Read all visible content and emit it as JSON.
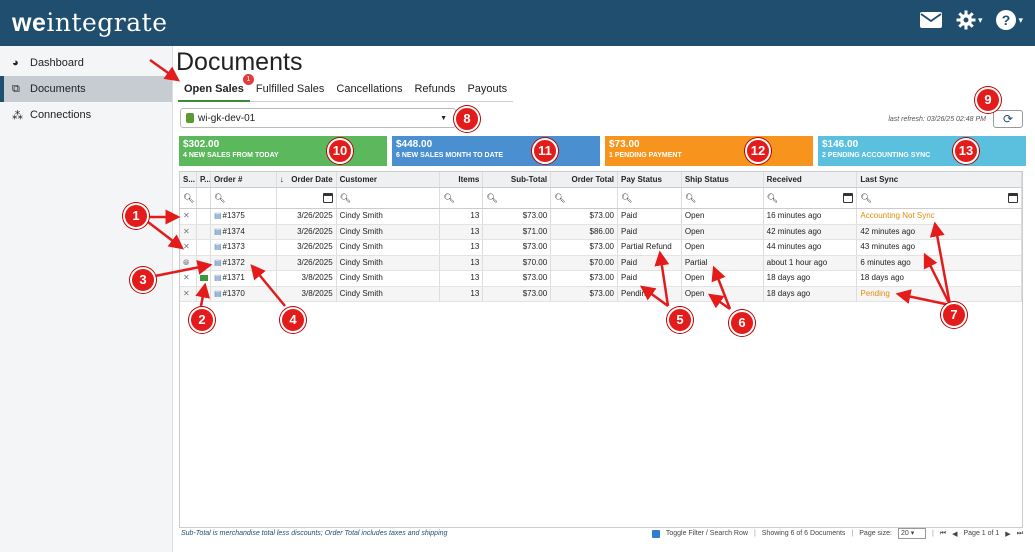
{
  "app": {
    "logo_bold": "we",
    "logo_rest": "integrate"
  },
  "topbar": {
    "icons": [
      "mail-icon",
      "gear-icon",
      "help-icon"
    ]
  },
  "sidebar": {
    "items": [
      {
        "label": "Dashboard",
        "icon": "dashboard-icon",
        "active": false
      },
      {
        "label": "Documents",
        "icon": "documents-icon",
        "active": true
      },
      {
        "label": "Connections",
        "icon": "connections-icon",
        "active": false
      }
    ]
  },
  "page": {
    "title": "Documents",
    "tabs": [
      {
        "label": "Open Sales",
        "badge": "1",
        "active": true
      },
      {
        "label": "Fulfilled Sales"
      },
      {
        "label": "Cancellations"
      },
      {
        "label": "Refunds"
      },
      {
        "label": "Payouts"
      }
    ],
    "store_select": "wi-gk-dev-01",
    "last_refresh": "last refresh: 03/26/25 02:48 PM"
  },
  "cards": [
    {
      "amount": "$302.00",
      "label": "4 NEW SALES FROM TODAY",
      "color": "#5cb85c"
    },
    {
      "amount": "$448.00",
      "label": "6 NEW SALES MONTH TO DATE",
      "color": "#4a90d0"
    },
    {
      "amount": "$73.00",
      "label": "1 PENDING PAYMENT",
      "color": "#f7941d"
    },
    {
      "amount": "$146.00",
      "label": "2 PENDING ACCOUNTING SYNC",
      "color": "#5bc0de"
    }
  ],
  "table": {
    "headers": [
      "S...",
      "P...",
      "Order #",
      "↓",
      "Order Date",
      "Customer",
      "Items",
      "Sub-Total",
      "Order Total",
      "Pay Status",
      "Ship Status",
      "Received",
      "Last Sync"
    ],
    "rows": [
      {
        "order": "#1375",
        "date": "3/26/2025",
        "customer": "Cindy Smith",
        "items": "13",
        "subtotal": "$73.00",
        "total": "$73.00",
        "pay": "Paid",
        "ship": "Open",
        "received": "16 minutes ago",
        "sync": "Accounting Not Sync",
        "sync_orange": true,
        "status_icon": "tools-icon",
        "pay_icon": ""
      },
      {
        "order": "#1374",
        "date": "3/26/2025",
        "customer": "Cindy Smith",
        "items": "13",
        "subtotal": "$71.00",
        "total": "$86.00",
        "pay": "Paid",
        "ship": "Open",
        "received": "42 minutes ago",
        "sync": "42 minutes ago",
        "sync_orange": false,
        "status_icon": "tools-icon",
        "pay_icon": ""
      },
      {
        "order": "#1373",
        "date": "3/26/2025",
        "customer": "Cindy Smith",
        "items": "13",
        "subtotal": "$73.00",
        "total": "$73.00",
        "pay": "Partial Refund",
        "ship": "Open",
        "received": "44 minutes ago",
        "sync": "43 minutes ago",
        "sync_orange": false,
        "status_icon": "tools-icon",
        "pay_icon": ""
      },
      {
        "order": "#1372",
        "date": "3/26/2025",
        "customer": "Cindy Smith",
        "items": "13",
        "subtotal": "$70.00",
        "total": "$70.00",
        "pay": "Paid",
        "ship": "Partial",
        "received": "about 1 hour ago",
        "sync": "6 minutes ago",
        "sync_orange": false,
        "status_icon": "globe-icon",
        "pay_icon": ""
      },
      {
        "order": "#1371",
        "date": "3/8/2025",
        "customer": "Cindy Smith",
        "items": "13",
        "subtotal": "$73.00",
        "total": "$73.00",
        "pay": "Paid",
        "ship": "Open",
        "received": "18 days ago",
        "sync": "18 days ago",
        "sync_orange": false,
        "status_icon": "tools-icon",
        "pay_icon": "cash-icon"
      },
      {
        "order": "#1370",
        "date": "3/8/2025",
        "customer": "Cindy Smith",
        "items": "13",
        "subtotal": "$73.00",
        "total": "$73.00",
        "pay": "Pending",
        "ship": "Open",
        "received": "18 days ago",
        "sync": "Pending",
        "sync_orange": true,
        "status_icon": "tools-icon",
        "pay_icon": ""
      }
    ]
  },
  "footer": {
    "note": "Sub-Total is merchandise total less discounts; Order Total includes taxes and shipping",
    "toggle": "Toggle Filter / Search Row",
    "showing": "Showing 6 of 6 Documents",
    "page_size_label": "Page size:",
    "page_size": "20",
    "page_label": "Page 1 of 1"
  },
  "annotations": [
    "1",
    "2",
    "3",
    "4",
    "5",
    "6",
    "7",
    "8",
    "9",
    "10",
    "11",
    "12",
    "13"
  ]
}
